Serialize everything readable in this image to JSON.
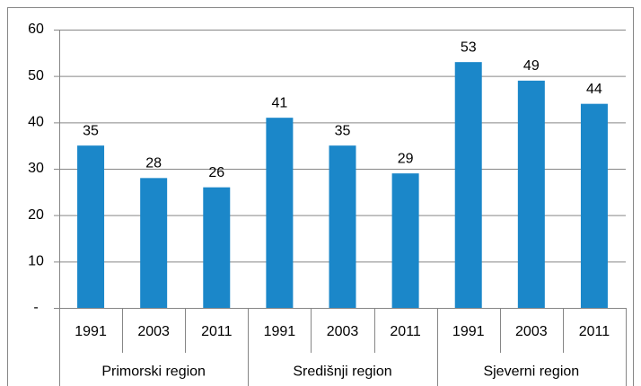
{
  "chart_data": {
    "type": "bar",
    "categories": [
      "1991",
      "2003",
      "2011",
      "1991",
      "2003",
      "2011",
      "1991",
      "2003",
      "2011"
    ],
    "groups": [
      "Primorski region",
      "Središnji region",
      "Sjeverni region"
    ],
    "values": [
      35,
      28,
      26,
      41,
      35,
      29,
      53,
      49,
      44
    ],
    "color": "#1b87c9",
    "ylim": [
      0,
      60
    ],
    "yticks": [
      {
        "value": 0,
        "label": "-"
      },
      10,
      20,
      30,
      40,
      50,
      60
    ],
    "grid": true
  }
}
